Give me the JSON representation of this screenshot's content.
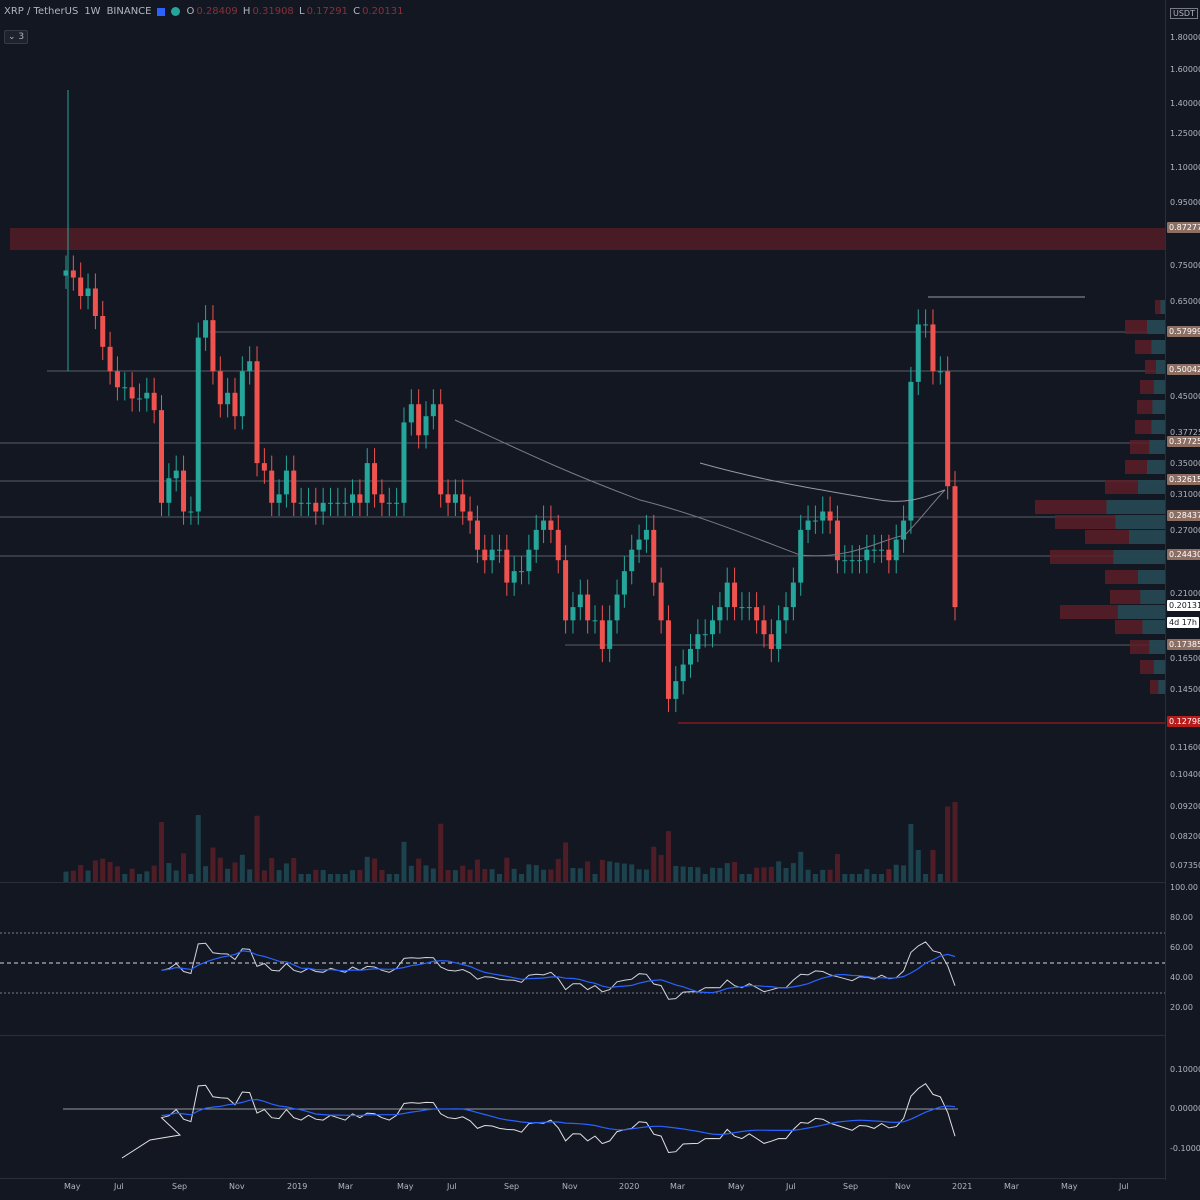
{
  "header": {
    "symbol": "XRP / TetherUS",
    "interval": "1W",
    "exchange": "BINANCE",
    "open_label": "O",
    "open": "0.28409",
    "high_label": "H",
    "high": "0.31908",
    "low_label": "L",
    "low": "0.17291",
    "close_label": "C",
    "close": "0.20131",
    "indicator_toggle": "⌄ 3"
  },
  "price_axis": {
    "currency": "USDT",
    "ticks": [
      "2.00000",
      "1.80000",
      "1.60000",
      "1.40000",
      "1.25000",
      "1.10000",
      "0.95000",
      "0.85000",
      "0.75000",
      "0.65000",
      "0.57999",
      "0.50042",
      "0.45000",
      "0.37725",
      "0.35000",
      "0.32615",
      "0.31000",
      "0.28437",
      "0.27000",
      "0.24430",
      "0.21000",
      "0.17385",
      "0.16500",
      "0.14500",
      "0.12798",
      "0.11600",
      "0.10400",
      "0.09200",
      "0.08200",
      "0.07350"
    ]
  },
  "price_badges": [
    {
      "text": "0.87277",
      "color": "#8d6e63"
    },
    {
      "text": "0.57999",
      "color": "#8d6e63"
    },
    {
      "text": "0.50042",
      "color": "#8d6e63"
    },
    {
      "text": "0.37725",
      "color": "#8d6e63"
    },
    {
      "text": "0.32615",
      "color": "#8d6e63"
    },
    {
      "text": "0.28437",
      "color": "#8d6e63"
    },
    {
      "text": "0.24430",
      "color": "#8d6e63"
    },
    {
      "text": "0.20131",
      "color": "#ffffff"
    },
    {
      "text": "4d 17h",
      "color": "#ffffff"
    },
    {
      "text": "0.17385",
      "color": "#8d6e63"
    },
    {
      "text": "0.12798",
      "color": "#b71c1c"
    }
  ],
  "rsi_axis": {
    "ticks": [
      "100.00",
      "80.00",
      "60.00",
      "40.00",
      "20.00"
    ]
  },
  "osc_axis": {
    "ticks": [
      "0.10000",
      "0.00000",
      "-0.10000"
    ]
  },
  "time_axis": {
    "ticks": [
      "May",
      "Jul",
      "Sep",
      "Nov",
      "2019",
      "Mar",
      "May",
      "Jul",
      "Sep",
      "Nov",
      "2020",
      "Mar",
      "May",
      "Jul",
      "Sep",
      "Nov",
      "2021",
      "Mar",
      "May",
      "Jul"
    ]
  },
  "colors": {
    "up": "#26a69a",
    "down": "#ef5350",
    "resistance_zone": "#5c1f27",
    "level_line": "#787b86",
    "rsi_line": "#d1d4dc",
    "rsi_ma": "#2962ff"
  },
  "chart_data": {
    "type": "candlestick",
    "series_note": "",
    "last_price": 0.20131,
    "support_low": 0.12798,
    "resistance_zone": [
      0.8,
      0.87277
    ],
    "levels": [
      0.57999,
      0.50042,
      0.37725,
      0.32615,
      0.28437,
      0.2443,
      0.17385
    ]
  }
}
